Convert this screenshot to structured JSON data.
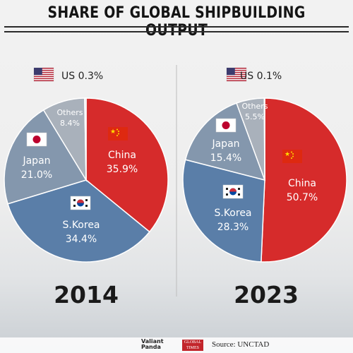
{
  "title": "SHARE OF GLOBAL SHIPBUILDING OUTPUT",
  "source": "Source: UNCTAD",
  "logos": {
    "valiant_line1": "Valiant",
    "valiant_line2": "Panda",
    "gt_line1": "GLOBAL",
    "gt_line2": "TIMES"
  },
  "colors": {
    "China": "#d62b2b",
    "S.Korea": "#5a7ea8",
    "Japan": "#8497ad",
    "Others": "#a9b1bb",
    "US": "#d9dce0"
  },
  "chart_data": [
    {
      "type": "pie",
      "title": "2014",
      "slices": [
        {
          "label": "China",
          "value": 35.9,
          "display": "35.9%",
          "flag": "china"
        },
        {
          "label": "S.Korea",
          "value": 34.4,
          "display": "34.4%",
          "flag": "korea"
        },
        {
          "label": "Japan",
          "value": 21.0,
          "display": "21.0%",
          "flag": "japan"
        },
        {
          "label": "Others",
          "value": 8.4,
          "display": "8.4%",
          "flag": ""
        },
        {
          "label": "US",
          "value": 0.3,
          "display": "0.3%",
          "flag": "us"
        }
      ]
    },
    {
      "type": "pie",
      "title": "2023",
      "slices": [
        {
          "label": "China",
          "value": 50.7,
          "display": "50.7%",
          "flag": "china"
        },
        {
          "label": "S.Korea",
          "value": 28.3,
          "display": "28.3%",
          "flag": "korea"
        },
        {
          "label": "Japan",
          "value": 15.4,
          "display": "15.4%",
          "flag": "japan"
        },
        {
          "label": "Others",
          "value": 5.5,
          "display": "5.5%",
          "flag": ""
        },
        {
          "label": "US",
          "value": 0.1,
          "display": "0.1%",
          "flag": "us"
        }
      ]
    }
  ]
}
